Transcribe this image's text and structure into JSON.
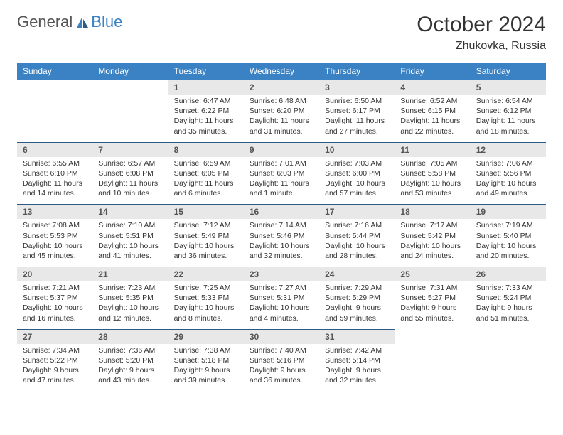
{
  "logo": {
    "general": "General",
    "blue": "Blue"
  },
  "title": "October 2024",
  "location": "Zhukovka, Russia",
  "colors": {
    "header_bg": "#3b82c4",
    "header_text": "#ffffff",
    "daynum_bg": "#e8e8e8",
    "daynum_border": "#2b5a82",
    "body_text": "#333333",
    "logo_gray": "#555555",
    "logo_blue": "#3b82c4",
    "page_bg": "#ffffff"
  },
  "day_headers": [
    "Sunday",
    "Monday",
    "Tuesday",
    "Wednesday",
    "Thursday",
    "Friday",
    "Saturday"
  ],
  "weeks": [
    [
      null,
      null,
      {
        "n": "1",
        "sr": "Sunrise: 6:47 AM",
        "ss": "Sunset: 6:22 PM",
        "dl": "Daylight: 11 hours and 35 minutes."
      },
      {
        "n": "2",
        "sr": "Sunrise: 6:48 AM",
        "ss": "Sunset: 6:20 PM",
        "dl": "Daylight: 11 hours and 31 minutes."
      },
      {
        "n": "3",
        "sr": "Sunrise: 6:50 AM",
        "ss": "Sunset: 6:17 PM",
        "dl": "Daylight: 11 hours and 27 minutes."
      },
      {
        "n": "4",
        "sr": "Sunrise: 6:52 AM",
        "ss": "Sunset: 6:15 PM",
        "dl": "Daylight: 11 hours and 22 minutes."
      },
      {
        "n": "5",
        "sr": "Sunrise: 6:54 AM",
        "ss": "Sunset: 6:12 PM",
        "dl": "Daylight: 11 hours and 18 minutes."
      }
    ],
    [
      {
        "n": "6",
        "sr": "Sunrise: 6:55 AM",
        "ss": "Sunset: 6:10 PM",
        "dl": "Daylight: 11 hours and 14 minutes."
      },
      {
        "n": "7",
        "sr": "Sunrise: 6:57 AM",
        "ss": "Sunset: 6:08 PM",
        "dl": "Daylight: 11 hours and 10 minutes."
      },
      {
        "n": "8",
        "sr": "Sunrise: 6:59 AM",
        "ss": "Sunset: 6:05 PM",
        "dl": "Daylight: 11 hours and 6 minutes."
      },
      {
        "n": "9",
        "sr": "Sunrise: 7:01 AM",
        "ss": "Sunset: 6:03 PM",
        "dl": "Daylight: 11 hours and 1 minute."
      },
      {
        "n": "10",
        "sr": "Sunrise: 7:03 AM",
        "ss": "Sunset: 6:00 PM",
        "dl": "Daylight: 10 hours and 57 minutes."
      },
      {
        "n": "11",
        "sr": "Sunrise: 7:05 AM",
        "ss": "Sunset: 5:58 PM",
        "dl": "Daylight: 10 hours and 53 minutes."
      },
      {
        "n": "12",
        "sr": "Sunrise: 7:06 AM",
        "ss": "Sunset: 5:56 PM",
        "dl": "Daylight: 10 hours and 49 minutes."
      }
    ],
    [
      {
        "n": "13",
        "sr": "Sunrise: 7:08 AM",
        "ss": "Sunset: 5:53 PM",
        "dl": "Daylight: 10 hours and 45 minutes."
      },
      {
        "n": "14",
        "sr": "Sunrise: 7:10 AM",
        "ss": "Sunset: 5:51 PM",
        "dl": "Daylight: 10 hours and 41 minutes."
      },
      {
        "n": "15",
        "sr": "Sunrise: 7:12 AM",
        "ss": "Sunset: 5:49 PM",
        "dl": "Daylight: 10 hours and 36 minutes."
      },
      {
        "n": "16",
        "sr": "Sunrise: 7:14 AM",
        "ss": "Sunset: 5:46 PM",
        "dl": "Daylight: 10 hours and 32 minutes."
      },
      {
        "n": "17",
        "sr": "Sunrise: 7:16 AM",
        "ss": "Sunset: 5:44 PM",
        "dl": "Daylight: 10 hours and 28 minutes."
      },
      {
        "n": "18",
        "sr": "Sunrise: 7:17 AM",
        "ss": "Sunset: 5:42 PM",
        "dl": "Daylight: 10 hours and 24 minutes."
      },
      {
        "n": "19",
        "sr": "Sunrise: 7:19 AM",
        "ss": "Sunset: 5:40 PM",
        "dl": "Daylight: 10 hours and 20 minutes."
      }
    ],
    [
      {
        "n": "20",
        "sr": "Sunrise: 7:21 AM",
        "ss": "Sunset: 5:37 PM",
        "dl": "Daylight: 10 hours and 16 minutes."
      },
      {
        "n": "21",
        "sr": "Sunrise: 7:23 AM",
        "ss": "Sunset: 5:35 PM",
        "dl": "Daylight: 10 hours and 12 minutes."
      },
      {
        "n": "22",
        "sr": "Sunrise: 7:25 AM",
        "ss": "Sunset: 5:33 PM",
        "dl": "Daylight: 10 hours and 8 minutes."
      },
      {
        "n": "23",
        "sr": "Sunrise: 7:27 AM",
        "ss": "Sunset: 5:31 PM",
        "dl": "Daylight: 10 hours and 4 minutes."
      },
      {
        "n": "24",
        "sr": "Sunrise: 7:29 AM",
        "ss": "Sunset: 5:29 PM",
        "dl": "Daylight: 9 hours and 59 minutes."
      },
      {
        "n": "25",
        "sr": "Sunrise: 7:31 AM",
        "ss": "Sunset: 5:27 PM",
        "dl": "Daylight: 9 hours and 55 minutes."
      },
      {
        "n": "26",
        "sr": "Sunrise: 7:33 AM",
        "ss": "Sunset: 5:24 PM",
        "dl": "Daylight: 9 hours and 51 minutes."
      }
    ],
    [
      {
        "n": "27",
        "sr": "Sunrise: 7:34 AM",
        "ss": "Sunset: 5:22 PM",
        "dl": "Daylight: 9 hours and 47 minutes."
      },
      {
        "n": "28",
        "sr": "Sunrise: 7:36 AM",
        "ss": "Sunset: 5:20 PM",
        "dl": "Daylight: 9 hours and 43 minutes."
      },
      {
        "n": "29",
        "sr": "Sunrise: 7:38 AM",
        "ss": "Sunset: 5:18 PM",
        "dl": "Daylight: 9 hours and 39 minutes."
      },
      {
        "n": "30",
        "sr": "Sunrise: 7:40 AM",
        "ss": "Sunset: 5:16 PM",
        "dl": "Daylight: 9 hours and 36 minutes."
      },
      {
        "n": "31",
        "sr": "Sunrise: 7:42 AM",
        "ss": "Sunset: 5:14 PM",
        "dl": "Daylight: 9 hours and 32 minutes."
      },
      null,
      null
    ]
  ]
}
